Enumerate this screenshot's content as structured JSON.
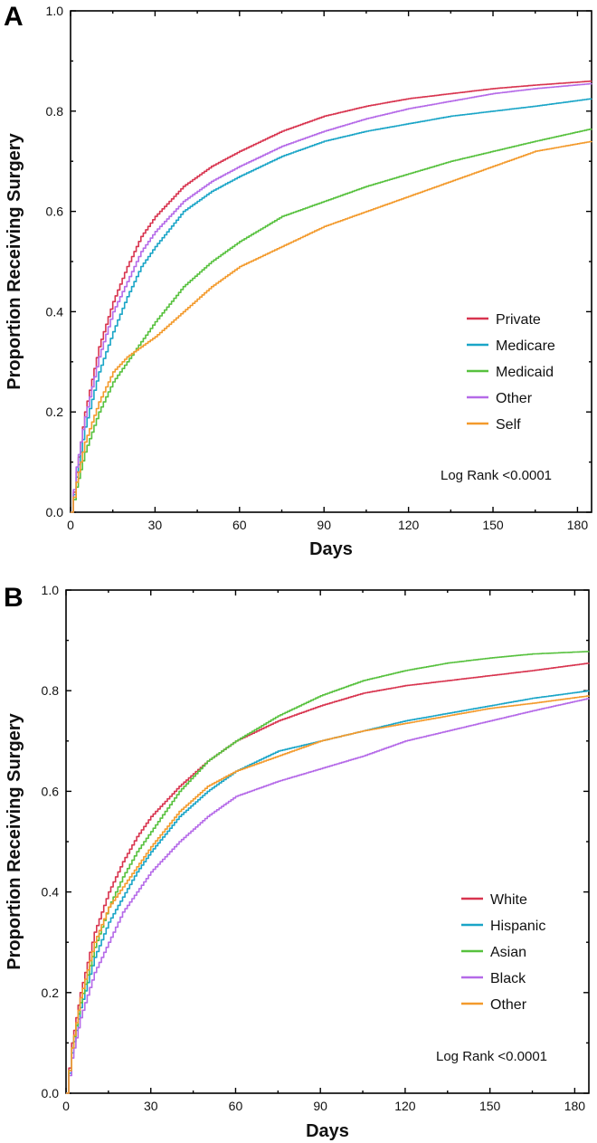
{
  "chart_data": [
    {
      "type": "line",
      "panel_label": "A",
      "xlabel": "Days",
      "ylabel": "Proportion Receiving Surgery",
      "xlim": [
        0,
        185
      ],
      "ylim": [
        0,
        1.0
      ],
      "xticks": [
        0,
        30,
        60,
        90,
        120,
        150,
        180
      ],
      "yticks": [
        "0.0",
        "0.2",
        "0.4",
        "0.6",
        "0.8",
        "1.0"
      ],
      "annotation": "Log Rank <0.0001",
      "legend_position": "lower-right",
      "series": [
        {
          "name": "Private",
          "color": "#d8344f",
          "x": [
            0,
            2,
            5,
            10,
            15,
            20,
            25,
            30,
            40,
            50,
            60,
            75,
            90,
            105,
            120,
            135,
            150,
            165,
            185
          ],
          "y": [
            0,
            0.08,
            0.2,
            0.33,
            0.42,
            0.49,
            0.55,
            0.59,
            0.65,
            0.69,
            0.72,
            0.76,
            0.79,
            0.81,
            0.825,
            0.835,
            0.845,
            0.852,
            0.86
          ]
        },
        {
          "name": "Medicare",
          "color": "#1aa5c7",
          "x": [
            0,
            2,
            5,
            10,
            15,
            20,
            25,
            30,
            40,
            50,
            60,
            75,
            90,
            105,
            120,
            135,
            150,
            165,
            185
          ],
          "y": [
            0,
            0.07,
            0.17,
            0.28,
            0.36,
            0.43,
            0.49,
            0.53,
            0.6,
            0.64,
            0.67,
            0.71,
            0.74,
            0.76,
            0.775,
            0.79,
            0.8,
            0.81,
            0.825
          ]
        },
        {
          "name": "Medicaid",
          "color": "#57c13e",
          "x": [
            0,
            2,
            5,
            10,
            15,
            20,
            25,
            30,
            40,
            50,
            60,
            75,
            90,
            105,
            120,
            135,
            150,
            165,
            185
          ],
          "y": [
            0,
            0.05,
            0.12,
            0.2,
            0.26,
            0.3,
            0.34,
            0.38,
            0.45,
            0.5,
            0.54,
            0.59,
            0.62,
            0.65,
            0.675,
            0.7,
            0.72,
            0.74,
            0.765
          ]
        },
        {
          "name": "Other",
          "color": "#b56ae8",
          "x": [
            0,
            2,
            5,
            10,
            15,
            20,
            25,
            30,
            40,
            50,
            60,
            75,
            90,
            105,
            120,
            135,
            150,
            165,
            185
          ],
          "y": [
            0,
            0.09,
            0.19,
            0.31,
            0.4,
            0.46,
            0.52,
            0.56,
            0.62,
            0.66,
            0.69,
            0.73,
            0.76,
            0.785,
            0.805,
            0.82,
            0.835,
            0.845,
            0.855
          ]
        },
        {
          "name": "Self",
          "color": "#f39a2c",
          "x": [
            0,
            2,
            5,
            10,
            15,
            20,
            25,
            30,
            40,
            50,
            60,
            75,
            90,
            105,
            120,
            135,
            150,
            165,
            185
          ],
          "y": [
            0,
            0.06,
            0.14,
            0.22,
            0.28,
            0.31,
            0.33,
            0.35,
            0.4,
            0.45,
            0.49,
            0.53,
            0.57,
            0.6,
            0.63,
            0.66,
            0.69,
            0.72,
            0.74
          ]
        }
      ]
    },
    {
      "type": "line",
      "panel_label": "B",
      "xlabel": "Days",
      "ylabel": "Proportion Receiving Surgery",
      "xlim": [
        0,
        185
      ],
      "ylim": [
        0,
        1.0
      ],
      "xticks": [
        0,
        30,
        60,
        90,
        120,
        150,
        180
      ],
      "yticks": [
        "0.0",
        "0.2",
        "0.4",
        "0.6",
        "0.8",
        "1.0"
      ],
      "annotation": "Log Rank <0.0001",
      "legend_position": "lower-right",
      "series": [
        {
          "name": "White",
          "color": "#d8344f",
          "x": [
            0,
            2,
            5,
            10,
            15,
            20,
            25,
            30,
            40,
            50,
            60,
            75,
            90,
            105,
            120,
            135,
            150,
            165,
            185
          ],
          "y": [
            0,
            0.1,
            0.2,
            0.32,
            0.4,
            0.46,
            0.51,
            0.55,
            0.61,
            0.66,
            0.7,
            0.74,
            0.77,
            0.795,
            0.81,
            0.82,
            0.83,
            0.84,
            0.855
          ]
        },
        {
          "name": "Hispanic",
          "color": "#1aa5c7",
          "x": [
            0,
            2,
            5,
            10,
            15,
            20,
            25,
            30,
            40,
            50,
            60,
            75,
            90,
            105,
            120,
            135,
            150,
            165,
            185
          ],
          "y": [
            0,
            0.08,
            0.17,
            0.27,
            0.34,
            0.39,
            0.44,
            0.48,
            0.55,
            0.6,
            0.64,
            0.68,
            0.7,
            0.72,
            0.74,
            0.755,
            0.77,
            0.785,
            0.8
          ]
        },
        {
          "name": "Asian",
          "color": "#57c13e",
          "x": [
            0,
            2,
            5,
            10,
            15,
            20,
            25,
            30,
            40,
            50,
            60,
            75,
            90,
            105,
            120,
            135,
            150,
            165,
            185
          ],
          "y": [
            0,
            0.09,
            0.18,
            0.29,
            0.37,
            0.43,
            0.48,
            0.52,
            0.6,
            0.66,
            0.7,
            0.75,
            0.79,
            0.82,
            0.84,
            0.855,
            0.865,
            0.873,
            0.878
          ]
        },
        {
          "name": "Black",
          "color": "#b56ae8",
          "x": [
            0,
            2,
            5,
            10,
            15,
            20,
            25,
            30,
            40,
            50,
            60,
            75,
            90,
            105,
            120,
            135,
            150,
            165,
            185
          ],
          "y": [
            0,
            0.07,
            0.15,
            0.24,
            0.3,
            0.36,
            0.4,
            0.44,
            0.5,
            0.55,
            0.59,
            0.62,
            0.645,
            0.67,
            0.7,
            0.72,
            0.74,
            0.76,
            0.785
          ]
        },
        {
          "name": "Other",
          "color": "#f39a2c",
          "x": [
            0,
            2,
            5,
            10,
            15,
            20,
            25,
            30,
            40,
            50,
            60,
            75,
            90,
            105,
            120,
            135,
            150,
            165,
            185
          ],
          "y": [
            0,
            0.09,
            0.19,
            0.3,
            0.37,
            0.41,
            0.45,
            0.49,
            0.56,
            0.61,
            0.64,
            0.67,
            0.7,
            0.72,
            0.735,
            0.75,
            0.765,
            0.775,
            0.79
          ]
        }
      ]
    }
  ]
}
